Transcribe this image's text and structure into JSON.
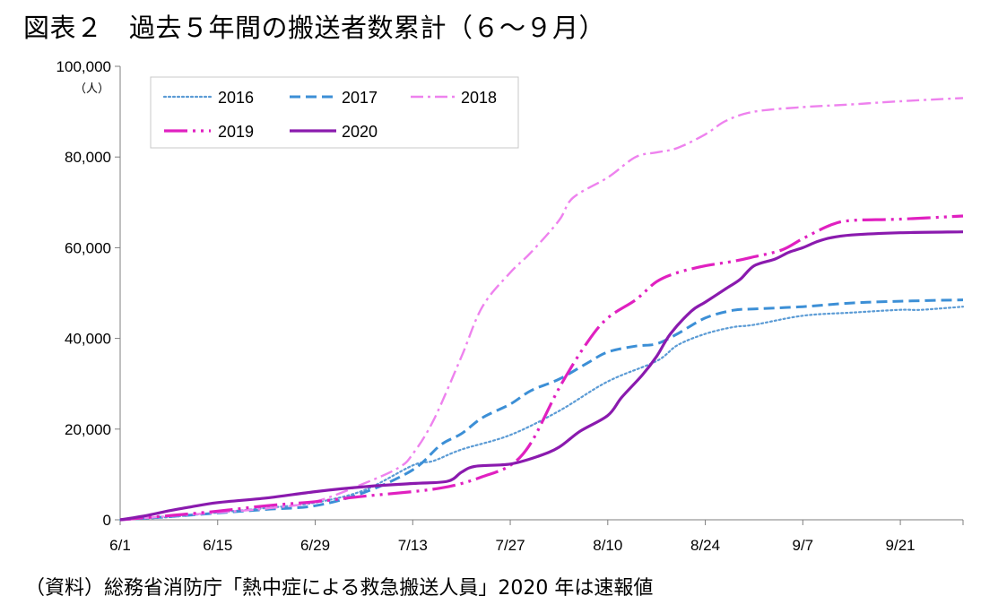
{
  "title": "図表２　過去５年間の搬送者数累計（６～９月）",
  "source": "（資料）総務省消防庁「熱中症による救急搬送人員」2020 年は速報値",
  "chart_data": {
    "type": "line",
    "y_unit": "（人）",
    "x_tick_labels": [
      "6/1",
      "6/15",
      "6/29",
      "7/13",
      "7/27",
      "8/10",
      "8/24",
      "9/7",
      "9/21"
    ],
    "x_tick_days": [
      0,
      14,
      28,
      42,
      56,
      70,
      84,
      98,
      112
    ],
    "x_range_days": [
      0,
      121
    ],
    "y_ticks": [
      0,
      20000,
      40000,
      60000,
      80000,
      100000
    ],
    "y_tick_labels": [
      "0",
      "20,000",
      "40,000",
      "60,000",
      "80,000",
      "100,000"
    ],
    "ylim": [
      0,
      100000
    ],
    "legend_position": "top-left, inside plot (2 rows)",
    "series": [
      {
        "name": "2016",
        "color": "#5B9BD5",
        "dash": "2,3",
        "width": 2.2,
        "points": [
          [
            0,
            0
          ],
          [
            7,
            600
          ],
          [
            14,
            1600
          ],
          [
            21,
            2600
          ],
          [
            28,
            3800
          ],
          [
            35,
            6500
          ],
          [
            42,
            12000
          ],
          [
            45,
            13000
          ],
          [
            49,
            15500
          ],
          [
            56,
            18700
          ],
          [
            63,
            24000
          ],
          [
            70,
            30500
          ],
          [
            77,
            35000
          ],
          [
            80,
            38500
          ],
          [
            84,
            41000
          ],
          [
            88,
            42500
          ],
          [
            91,
            43000
          ],
          [
            98,
            45000
          ],
          [
            105,
            45700
          ],
          [
            112,
            46300
          ],
          [
            115,
            46300
          ],
          [
            121,
            47000
          ]
        ]
      },
      {
        "name": "2017",
        "color": "#3C8FD6",
        "dash": "12,6",
        "width": 3,
        "points": [
          [
            0,
            0
          ],
          [
            7,
            700
          ],
          [
            14,
            1500
          ],
          [
            21,
            2300
          ],
          [
            28,
            3100
          ],
          [
            35,
            6000
          ],
          [
            42,
            11000
          ],
          [
            46,
            16500
          ],
          [
            49,
            19000
          ],
          [
            52,
            22500
          ],
          [
            56,
            25500
          ],
          [
            59,
            28500
          ],
          [
            63,
            31000
          ],
          [
            67,
            34500
          ],
          [
            70,
            37000
          ],
          [
            74,
            38300
          ],
          [
            77,
            38800
          ],
          [
            80,
            41000
          ],
          [
            84,
            44500
          ],
          [
            88,
            46200
          ],
          [
            91,
            46500
          ],
          [
            98,
            47000
          ],
          [
            105,
            47800
          ],
          [
            112,
            48200
          ],
          [
            121,
            48500
          ]
        ]
      },
      {
        "name": "2018",
        "color": "#EE82EE",
        "dash": "14,5,3,5",
        "width": 2.4,
        "points": [
          [
            0,
            0
          ],
          [
            7,
            800
          ],
          [
            14,
            1600
          ],
          [
            21,
            2500
          ],
          [
            28,
            4000
          ],
          [
            35,
            8000
          ],
          [
            40,
            11500
          ],
          [
            42,
            14500
          ],
          [
            45,
            22000
          ],
          [
            49,
            36000
          ],
          [
            52,
            47000
          ],
          [
            56,
            54500
          ],
          [
            59,
            59000
          ],
          [
            63,
            66000
          ],
          [
            65,
            71000
          ],
          [
            70,
            75500
          ],
          [
            74,
            80000
          ],
          [
            77,
            81000
          ],
          [
            80,
            82000
          ],
          [
            84,
            85000
          ],
          [
            87,
            88000
          ],
          [
            91,
            90000
          ],
          [
            98,
            91000
          ],
          [
            105,
            91600
          ],
          [
            112,
            92300
          ],
          [
            121,
            93000
          ]
        ]
      },
      {
        "name": "2019",
        "color": "#E020C0",
        "dash": "26,6,3,6,3,6",
        "width": 3.2,
        "points": [
          [
            0,
            0
          ],
          [
            7,
            900
          ],
          [
            14,
            1900
          ],
          [
            21,
            3100
          ],
          [
            28,
            4000
          ],
          [
            35,
            5200
          ],
          [
            42,
            6200
          ],
          [
            46,
            7000
          ],
          [
            49,
            8000
          ],
          [
            52,
            9500
          ],
          [
            56,
            12000
          ],
          [
            59,
            17000
          ],
          [
            63,
            29000
          ],
          [
            67,
            39000
          ],
          [
            70,
            44500
          ],
          [
            74,
            48500
          ],
          [
            77,
            52500
          ],
          [
            80,
            54500
          ],
          [
            84,
            56000
          ],
          [
            88,
            57000
          ],
          [
            91,
            58000
          ],
          [
            95,
            59500
          ],
          [
            98,
            62000
          ],
          [
            102,
            65000
          ],
          [
            105,
            66000
          ],
          [
            112,
            66300
          ],
          [
            121,
            67000
          ]
        ]
      },
      {
        "name": "2020",
        "color": "#8A1AAE",
        "dash": "",
        "width": 3.2,
        "points": [
          [
            0,
            0
          ],
          [
            4,
            1000
          ],
          [
            7,
            2000
          ],
          [
            10,
            2800
          ],
          [
            14,
            3800
          ],
          [
            21,
            4800
          ],
          [
            28,
            6200
          ],
          [
            35,
            7300
          ],
          [
            42,
            8000
          ],
          [
            47,
            8500
          ],
          [
            49,
            10500
          ],
          [
            51,
            11800
          ],
          [
            56,
            12300
          ],
          [
            60,
            14000
          ],
          [
            63,
            16000
          ],
          [
            66,
            19500
          ],
          [
            70,
            23000
          ],
          [
            72,
            27000
          ],
          [
            75,
            32000
          ],
          [
            77,
            36000
          ],
          [
            79,
            41000
          ],
          [
            82,
            46000
          ],
          [
            84,
            48000
          ],
          [
            87,
            51000
          ],
          [
            89,
            53000
          ],
          [
            91,
            56000
          ],
          [
            94,
            57500
          ],
          [
            96,
            59000
          ],
          [
            98,
            60000
          ],
          [
            100,
            61300
          ],
          [
            102,
            62200
          ],
          [
            105,
            62800
          ],
          [
            112,
            63300
          ],
          [
            121,
            63500
          ]
        ]
      }
    ]
  }
}
